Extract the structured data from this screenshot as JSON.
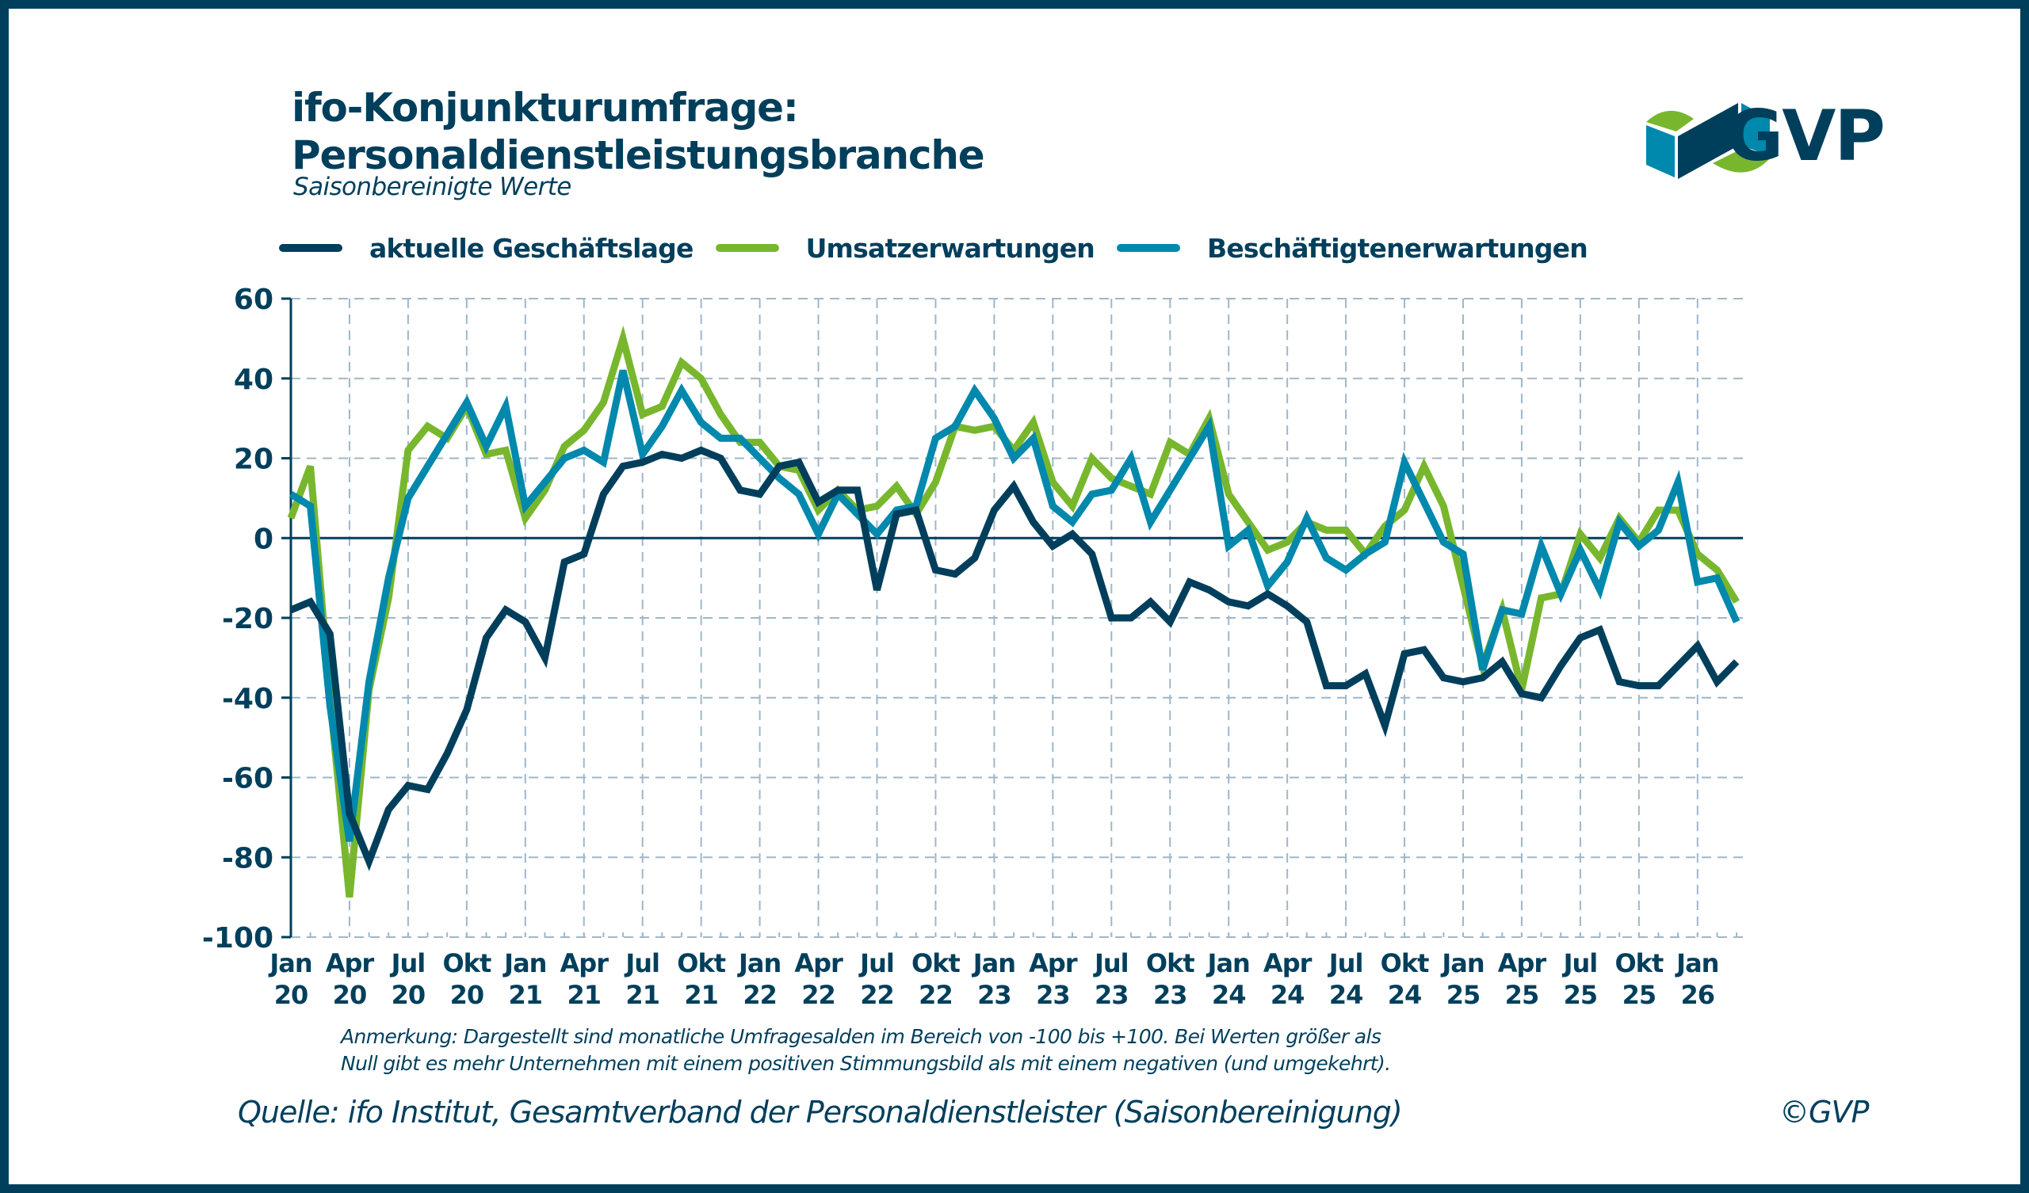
{
  "header": {
    "title_line1": "ifo-Konjunkturumfrage:",
    "title_line2": "Personaldienstleistungsbranche",
    "subtitle": "Saisonbereinigte Werte",
    "logo_text": "GVP"
  },
  "colors": {
    "navy": "#003f5c",
    "green": "#78b72d",
    "teal": "#0088ad",
    "grid": "#9fb7c9",
    "logo_green": "#78b72d",
    "logo_teal": "#0088ad",
    "logo_navy": "#003f5c"
  },
  "chart_data": {
    "type": "line",
    "title": "ifo-Konjunkturumfrage: Personaldienstleistungsbranche",
    "subtitle": "Saisonbereinigte Werte",
    "xlabel": "",
    "ylabel": "",
    "ylim": [
      -100,
      60
    ],
    "yticks": [
      60,
      40,
      20,
      0,
      -20,
      -40,
      -60,
      -80,
      -100
    ],
    "grid": true,
    "legend_position": "top",
    "x": [
      "Jan 20",
      "Feb 20",
      "Mär 20",
      "Apr 20",
      "Mai 20",
      "Jun 20",
      "Jul 20",
      "Aug 20",
      "Sep 20",
      "Okt 20",
      "Nov 20",
      "Dez 20",
      "Jan 21",
      "Feb 21",
      "Mär 21",
      "Apr 21",
      "Mai 21",
      "Jun 21",
      "Jul 21",
      "Aug 21",
      "Sep 21",
      "Okt 21",
      "Nov 21",
      "Dez 21",
      "Jan 22",
      "Feb 22",
      "Mär 22",
      "Apr 22",
      "Mai 22",
      "Jun 22",
      "Jul 22",
      "Aug 22",
      "Sep 22",
      "Okt 22",
      "Nov 22",
      "Dez 22",
      "Jan 23",
      "Feb 23",
      "Mär 23",
      "Apr 23",
      "Mai 23",
      "Jun 23",
      "Jul 23",
      "Aug 23",
      "Sep 23",
      "Okt 23",
      "Nov 23",
      "Dez 23",
      "Jan 24",
      "Feb 24",
      "Mär 24",
      "Apr 24",
      "Mai 24",
      "Jun 24",
      "Jul 24",
      "Aug 24",
      "Sep 24",
      "Okt 24",
      "Nov 24",
      "Dez 24",
      "Jan 25",
      "Feb 25",
      "Mär 25",
      "Apr 25",
      "Mai 25",
      "Jun 25",
      "Jul 25",
      "Aug 25",
      "Sep 25",
      "Okt 25",
      "Nov 25",
      "Dez 25",
      "Jan 26",
      "Feb 26",
      "Mär 26"
    ],
    "tick_labels": [
      {
        "index": 0,
        "month": "Jan",
        "year": "20"
      },
      {
        "index": 3,
        "month": "Apr",
        "year": "20"
      },
      {
        "index": 6,
        "month": "Jul",
        "year": "20"
      },
      {
        "index": 9,
        "month": "Okt",
        "year": "20"
      },
      {
        "index": 12,
        "month": "Jan",
        "year": "21"
      },
      {
        "index": 15,
        "month": "Apr",
        "year": "21"
      },
      {
        "index": 18,
        "month": "Jul",
        "year": "21"
      },
      {
        "index": 21,
        "month": "Okt",
        "year": "21"
      },
      {
        "index": 24,
        "month": "Jan",
        "year": "22"
      },
      {
        "index": 27,
        "month": "Apr",
        "year": "22"
      },
      {
        "index": 30,
        "month": "Jul",
        "year": "22"
      },
      {
        "index": 33,
        "month": "Okt",
        "year": "22"
      },
      {
        "index": 36,
        "month": "Jan",
        "year": "23"
      },
      {
        "index": 39,
        "month": "Apr",
        "year": "23"
      },
      {
        "index": 42,
        "month": "Jul",
        "year": "23"
      },
      {
        "index": 45,
        "month": "Okt",
        "year": "23"
      },
      {
        "index": 48,
        "month": "Jan",
        "year": "24"
      },
      {
        "index": 51,
        "month": "Apr",
        "year": "24"
      },
      {
        "index": 54,
        "month": "Jul",
        "year": "24"
      },
      {
        "index": 57,
        "month": "Okt",
        "year": "24"
      },
      {
        "index": 60,
        "month": "Jan",
        "year": "25"
      },
      {
        "index": 63,
        "month": "Apr",
        "year": "25"
      },
      {
        "index": 66,
        "month": "Jul",
        "year": "25"
      },
      {
        "index": 69,
        "month": "Okt",
        "year": "25"
      },
      {
        "index": 72,
        "month": "Jan",
        "year": "26"
      }
    ],
    "series": [
      {
        "name": "aktuelle Geschäftslage",
        "color": "#003f5c",
        "values": [
          -18,
          -16,
          -24,
          -69,
          -81,
          -68,
          -62,
          -63,
          -54,
          -43,
          -25,
          -18,
          -21,
          -30,
          -6,
          -4,
          11,
          18,
          19,
          21,
          20,
          22,
          20,
          12,
          11,
          18,
          19,
          9,
          12,
          12,
          -13,
          6,
          7,
          -8,
          -9,
          -5,
          7,
          13,
          4,
          -2,
          1,
          -4,
          -20,
          -20,
          -16,
          -21,
          -11,
          -13,
          -16,
          -17,
          -14,
          -17,
          -21,
          -37,
          -37,
          -34,
          -47,
          -29,
          -28,
          -35,
          -36,
          -35,
          -31,
          -39,
          -40,
          -32,
          -25,
          -23,
          -36,
          -37,
          -37,
          -32,
          -27,
          -36,
          -31
        ]
      },
      {
        "name": "Umsatzerwartungen",
        "color": "#78b72d",
        "values": [
          5,
          18,
          -40,
          -90,
          -38,
          -15,
          22,
          28,
          25,
          33,
          21,
          22,
          5,
          12,
          23,
          27,
          34,
          50,
          31,
          33,
          44,
          40,
          31,
          24,
          24,
          18,
          17,
          7,
          12,
          7,
          8,
          13,
          6,
          14,
          28,
          27,
          28,
          22,
          29,
          14,
          8,
          20,
          15,
          13,
          11,
          24,
          21,
          30,
          11,
          4,
          -3,
          -1,
          4,
          2,
          2,
          -4,
          3,
          7,
          18,
          8,
          -12,
          -32,
          -18,
          -38,
          -15,
          -14,
          1,
          -5,
          5,
          -1,
          7,
          7,
          -4,
          -8,
          -16
        ]
      },
      {
        "name": "Beschäftigtenerwartungen",
        "color": "#0088ad",
        "values": [
          11,
          8,
          -42,
          -76,
          -36,
          -10,
          10,
          18,
          26,
          34,
          23,
          33,
          8,
          14,
          20,
          22,
          19,
          42,
          21,
          28,
          37,
          29,
          25,
          25,
          20,
          15,
          11,
          1,
          11,
          6,
          1,
          7,
          8,
          25,
          28,
          37,
          30,
          20,
          25,
          8,
          4,
          11,
          12,
          20,
          4,
          12,
          20,
          28,
          -2,
          2,
          -12,
          -6,
          5,
          -5,
          -8,
          -4,
          -1,
          19,
          9,
          -1,
          -4,
          -33,
          -18,
          -19,
          -2,
          -14,
          -3,
          -13,
          4,
          -2,
          2,
          14,
          -11,
          -10,
          -21
        ]
      }
    ]
  },
  "legend": {
    "items": [
      {
        "label": "aktuelle Geschäftslage",
        "color": "#003f5c"
      },
      {
        "label": "Umsatzerwartungen",
        "color": "#78b72d"
      },
      {
        "label": "Beschäftigtenerwartungen",
        "color": "#0088ad"
      }
    ]
  },
  "footer": {
    "note_line1": "Anmerkung: Dargestellt sind monatliche Umfragesalden im Bereich von -100 bis +100. Bei Werten größer als",
    "note_line2": "Null gibt es mehr Unternehmen mit einem positiven Stimmungsbild als mit einem negativen (und umgekehrt).",
    "source": "Quelle: ifo Institut, Gesamtverband der Personaldienstleister (Saisonbereinigung)",
    "copyright": "©GVP"
  }
}
